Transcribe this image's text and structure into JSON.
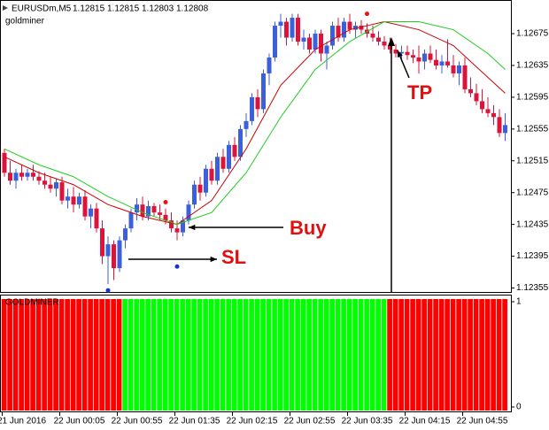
{
  "chart_data": {
    "type": "candlestick",
    "header": "EURUSDm,M5",
    "quote": [
      1.12815,
      1.12815,
      1.12803,
      1.12808
    ],
    "indicator_name": "goldminer",
    "bull_color": "#3c5fdc",
    "bear_color": "#dc143c",
    "ylim": [
      1.1235,
      1.12714
    ],
    "yticks": [
      1.12355,
      1.12395,
      1.12435,
      1.12475,
      1.12515,
      1.12555,
      1.12595,
      1.12635,
      1.12675
    ],
    "categories": [
      null,
      null,
      null,
      "21 Jun 2016",
      null,
      null,
      null,
      null,
      null,
      null,
      null,
      null,
      null,
      "22 Jun 00:05",
      null,
      null,
      null,
      null,
      null,
      null,
      null,
      null,
      null,
      "22 Jun 00:55",
      null,
      null,
      null,
      null,
      null,
      null,
      null,
      null,
      null,
      "22 Jun 01:35",
      null,
      null,
      null,
      null,
      null,
      null,
      null,
      null,
      null,
      "22 Jun 02:15",
      null,
      null,
      null,
      null,
      null,
      null,
      null,
      null,
      null,
      "22 Jun 02:55",
      null,
      null,
      null,
      null,
      null,
      null,
      null,
      null,
      null,
      "22 Jun 03:35",
      null,
      null,
      null,
      null,
      null,
      null,
      null,
      null,
      null,
      "22 Jun 04:15",
      null,
      null,
      null,
      null,
      null,
      null,
      null,
      null,
      null,
      "22 Jun 04:55",
      null,
      null,
      null,
      null
    ],
    "ohlc": [
      [
        1.12525,
        1.1253,
        1.12495,
        1.125
      ],
      [
        1.125,
        1.12515,
        1.12485,
        1.1249
      ],
      [
        1.1249,
        1.12505,
        1.1248,
        1.125
      ],
      [
        1.125,
        1.1251,
        1.1249,
        1.12495
      ],
      [
        1.12495,
        1.12505,
        1.1249,
        1.125
      ],
      [
        1.125,
        1.1251,
        1.1249,
        1.12495
      ],
      [
        1.12495,
        1.12502,
        1.12485,
        1.1249
      ],
      [
        1.1249,
        1.125,
        1.1248,
        1.12485
      ],
      [
        1.12485,
        1.12495,
        1.12475,
        1.1248
      ],
      [
        1.1248,
        1.12492,
        1.1247,
        1.12488
      ],
      [
        1.12488,
        1.12495,
        1.1246,
        1.12465
      ],
      [
        1.12465,
        1.1248,
        1.12455,
        1.1247
      ],
      [
        1.1247,
        1.12482,
        1.1245,
        1.1246
      ],
      [
        1.1246,
        1.12475,
        1.12455,
        1.1247
      ],
      [
        1.1247,
        1.12478,
        1.1244,
        1.12445
      ],
      [
        1.12445,
        1.1246,
        1.1243,
        1.12455
      ],
      [
        1.12455,
        1.12462,
        1.12425,
        1.1243
      ],
      [
        1.1243,
        1.1244,
        1.12385,
        1.12395
      ],
      [
        1.12395,
        1.1242,
        1.1236,
        1.1241
      ],
      [
        1.1241,
        1.12415,
        1.12365,
        1.1238
      ],
      [
        1.1238,
        1.1242,
        1.12375,
        1.12415
      ],
      [
        1.12415,
        1.12435,
        1.12405,
        1.1243
      ],
      [
        1.1243,
        1.12455,
        1.12425,
        1.1245
      ],
      [
        1.1245,
        1.12468,
        1.1244,
        1.1246
      ],
      [
        1.1246,
        1.1247,
        1.1244,
        1.12445
      ],
      [
        1.12445,
        1.12465,
        1.1244,
        1.12458
      ],
      [
        1.12458,
        1.12462,
        1.12445,
        1.1245
      ],
      [
        1.1245,
        1.1246,
        1.1244,
        1.12447
      ],
      [
        1.12447,
        1.12455,
        1.12435,
        1.1244
      ],
      [
        1.1244,
        1.1245,
        1.12425,
        1.1243
      ],
      [
        1.1243,
        1.1244,
        1.12415,
        1.12425
      ],
      [
        1.12425,
        1.12445,
        1.1242,
        1.1244
      ],
      [
        1.1244,
        1.12465,
        1.12435,
        1.1246
      ],
      [
        1.1246,
        1.1249,
        1.12455,
        1.12485
      ],
      [
        1.12485,
        1.12495,
        1.12465,
        1.12475
      ],
      [
        1.12475,
        1.1251,
        1.1247,
        1.12505
      ],
      [
        1.12505,
        1.12515,
        1.12485,
        1.1249
      ],
      [
        1.1249,
        1.12525,
        1.12485,
        1.1252
      ],
      [
        1.1252,
        1.1253,
        1.125,
        1.12505
      ],
      [
        1.12505,
        1.1254,
        1.125,
        1.12535
      ],
      [
        1.12535,
        1.12545,
        1.12515,
        1.1252
      ],
      [
        1.1252,
        1.1256,
        1.12515,
        1.12555
      ],
      [
        1.12555,
        1.12575,
        1.12545,
        1.12565
      ],
      [
        1.12565,
        1.126,
        1.1256,
        1.12595
      ],
      [
        1.12595,
        1.12605,
        1.1257,
        1.1258
      ],
      [
        1.1258,
        1.1263,
        1.12575,
        1.12625
      ],
      [
        1.12625,
        1.1265,
        1.1261,
        1.12645
      ],
      [
        1.12645,
        1.1269,
        1.1264,
        1.12685
      ],
      [
        1.12685,
        1.127,
        1.1267,
        1.1269
      ],
      [
        1.1269,
        1.12695,
        1.1266,
        1.1267
      ],
      [
        1.1267,
        1.127,
        1.12665,
        1.12695
      ],
      [
        1.12695,
        1.127,
        1.1266,
        1.12665
      ],
      [
        1.12665,
        1.1268,
        1.12655,
        1.1267
      ],
      [
        1.1267,
        1.12675,
        1.1265,
        1.12655
      ],
      [
        1.12655,
        1.1268,
        1.1265,
        1.12675
      ],
      [
        1.12675,
        1.1268,
        1.1264,
        1.1265
      ],
      [
        1.1265,
        1.12665,
        1.1263,
        1.1266
      ],
      [
        1.1266,
        1.1269,
        1.12655,
        1.12685
      ],
      [
        1.12685,
        1.12695,
        1.12665,
        1.1267
      ],
      [
        1.1267,
        1.12695,
        1.12665,
        1.1269
      ],
      [
        1.1269,
        1.127,
        1.12675,
        1.1268
      ],
      [
        1.1268,
        1.1269,
        1.1267,
        1.12685
      ],
      [
        1.12685,
        1.12692,
        1.12675,
        1.1268
      ],
      [
        1.1268,
        1.12688,
        1.1267,
        1.12675
      ],
      [
        1.12675,
        1.12685,
        1.12665,
        1.1267
      ],
      [
        1.1267,
        1.12678,
        1.1266,
        1.12665
      ],
      [
        1.12665,
        1.12672,
        1.12655,
        1.1266
      ],
      [
        1.1266,
        1.1267,
        1.1265,
        1.12655
      ],
      [
        1.12655,
        1.12662,
        1.12645,
        1.1265
      ],
      [
        1.1265,
        1.1266,
        1.1264,
        1.12652
      ],
      [
        1.12652,
        1.1266,
        1.12642,
        1.12648
      ],
      [
        1.12648,
        1.12655,
        1.12638,
        1.12645
      ],
      [
        1.12645,
        1.1266,
        1.12625,
        1.1264
      ],
      [
        1.1264,
        1.12655,
        1.1263,
        1.1265
      ],
      [
        1.1265,
        1.1266,
        1.12638,
        1.12642
      ],
      [
        1.12642,
        1.12655,
        1.1263,
        1.12635
      ],
      [
        1.12635,
        1.12648,
        1.12625,
        1.1264
      ],
      [
        1.1264,
        1.12668,
        1.12632,
        1.12635
      ],
      [
        1.12635,
        1.12648,
        1.1262,
        1.12625
      ],
      [
        1.12625,
        1.1264,
        1.1261,
        1.12635
      ],
      [
        1.12635,
        1.12645,
        1.126,
        1.12605
      ],
      [
        1.12605,
        1.1262,
        1.12595,
        1.126
      ],
      [
        1.126,
        1.12612,
        1.12585,
        1.1259
      ],
      [
        1.1259,
        1.12605,
        1.12575,
        1.1258
      ],
      [
        1.1258,
        1.12595,
        1.1257,
        1.12575
      ],
      [
        1.12575,
        1.12585,
        1.1256,
        1.1257
      ],
      [
        1.1257,
        1.1258,
        1.12545,
        1.1255
      ],
      [
        1.1255,
        1.12575,
        1.1254,
        1.1256
      ]
    ],
    "lines": [
      {
        "color": "#cc0000",
        "x": [
          0,
          6,
          12,
          18,
          24,
          30,
          36,
          42,
          48,
          54,
          60,
          66,
          72,
          78,
          84,
          87
        ],
        "values": [
          1.1252,
          1.125,
          1.12485,
          1.1246,
          1.12445,
          1.12435,
          1.12465,
          1.1253,
          1.1261,
          1.12655,
          1.1268,
          1.1269,
          1.1268,
          1.1266,
          1.1262,
          1.126
        ]
      },
      {
        "color": "#22cc22",
        "x": [
          0,
          6,
          12,
          18,
          24,
          30,
          36,
          42,
          48,
          54,
          60,
          66,
          72,
          78,
          84,
          87
        ],
        "values": [
          1.1253,
          1.1251,
          1.12495,
          1.1247,
          1.1245,
          1.12435,
          1.1245,
          1.125,
          1.1257,
          1.1263,
          1.12665,
          1.1269,
          1.1269,
          1.1268,
          1.1265,
          1.1263
        ]
      }
    ],
    "markers": [
      {
        "x": 28,
        "value": 1.12463,
        "color": "#ee1111"
      },
      {
        "x": 63,
        "value": 1.127,
        "color": "#ee1111"
      },
      {
        "x": 30,
        "value": 1.12382,
        "color": "#1133cc"
      },
      {
        "x": 18,
        "value": 1.12352,
        "color": "#1133cc"
      }
    ],
    "annotations": {
      "buy": "Buy",
      "sl": "SL",
      "tp": "TP"
    },
    "indicator": {
      "label": "GOLDMINER",
      "ylim": [
        0,
        1
      ],
      "yticks": [
        0,
        1
      ],
      "bars": [
        {
          "color": "#ff0000",
          "count": 21,
          "value": 1
        },
        {
          "color": "#00ff00",
          "count": 46,
          "value": 1
        },
        {
          "color": "#ff0000",
          "count": 21,
          "value": 1
        }
      ]
    }
  }
}
